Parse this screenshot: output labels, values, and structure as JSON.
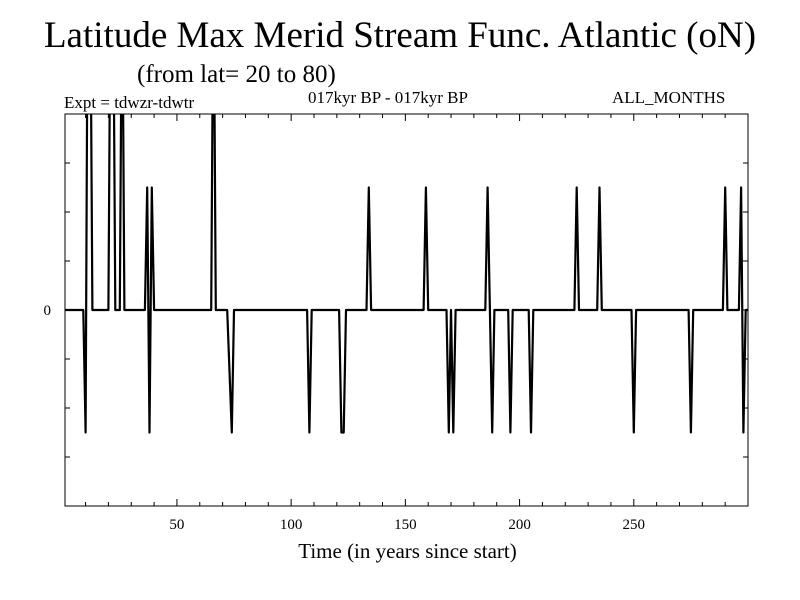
{
  "header": {
    "title": "Latitude Max Merid Stream Func. Atlantic (oN)",
    "subtitle": "(from lat= 20 to 80)",
    "expt": "Expt = tdwzr-tdwtr",
    "period": "017kyr BP - 017kyr BP",
    "months": "ALL_MONTHS"
  },
  "chart_data": {
    "type": "line",
    "title": "Latitude Max Merid Stream Func. Atlantic (oN)",
    "subtitle": "(from lat= 20 to 80)",
    "xlabel": "Time (in years since start)",
    "ylabel": "",
    "xlim": [
      1,
      300
    ],
    "ylim": [
      -2,
      2
    ],
    "x_ticks": [
      50,
      100,
      150,
      200,
      250
    ],
    "y_ticks": [
      0
    ],
    "grid": false,
    "series": [
      {
        "values": [
          [
            1,
            0
          ],
          [
            9,
            0
          ],
          [
            10,
            -1.25
          ],
          [
            11,
            3.7
          ],
          [
            12,
            3.7
          ],
          [
            13,
            0
          ],
          [
            20,
            0
          ],
          [
            21,
            3.7
          ],
          [
            22,
            3.7
          ],
          [
            23,
            0
          ],
          [
            25,
            0
          ],
          [
            26,
            3.7
          ],
          [
            27,
            0
          ],
          [
            36,
            0
          ],
          [
            37,
            1.25
          ],
          [
            38,
            -1.25
          ],
          [
            39,
            1.25
          ],
          [
            40,
            0
          ],
          [
            65,
            0
          ],
          [
            66,
            3.7
          ],
          [
            67,
            0
          ],
          [
            72,
            0
          ],
          [
            74,
            -1.25
          ],
          [
            75,
            0
          ],
          [
            107,
            0
          ],
          [
            108,
            -1.25
          ],
          [
            109,
            0
          ],
          [
            121,
            0
          ],
          [
            122,
            -1.25
          ],
          [
            123,
            -1.25
          ],
          [
            124,
            0
          ],
          [
            133,
            0
          ],
          [
            134,
            1.25
          ],
          [
            135,
            0
          ],
          [
            158,
            0
          ],
          [
            159,
            1.25
          ],
          [
            160,
            0
          ],
          [
            168,
            0
          ],
          [
            169,
            -1.25
          ],
          [
            170,
            0
          ],
          [
            171,
            -1.25
          ],
          [
            172,
            0
          ],
          [
            185,
            0
          ],
          [
            186,
            1.25
          ],
          [
            187,
            0
          ],
          [
            188,
            -1.25
          ],
          [
            189,
            0
          ],
          [
            195,
            0
          ],
          [
            196,
            -1.25
          ],
          [
            197,
            0
          ],
          [
            204,
            0
          ],
          [
            205,
            -1.25
          ],
          [
            206,
            0
          ],
          [
            224,
            0
          ],
          [
            225,
            1.25
          ],
          [
            226,
            0
          ],
          [
            234,
            0
          ],
          [
            235,
            1.25
          ],
          [
            236,
            0
          ],
          [
            249,
            0
          ],
          [
            250,
            -1.25
          ],
          [
            251,
            0
          ],
          [
            274,
            0
          ],
          [
            275,
            -1.25
          ],
          [
            276,
            0
          ],
          [
            289,
            0
          ],
          [
            290,
            1.25
          ],
          [
            291,
            0
          ],
          [
            296,
            0
          ],
          [
            297,
            1.25
          ],
          [
            298,
            -1.25
          ],
          [
            299,
            0
          ],
          [
            300,
            0
          ]
        ]
      }
    ]
  }
}
